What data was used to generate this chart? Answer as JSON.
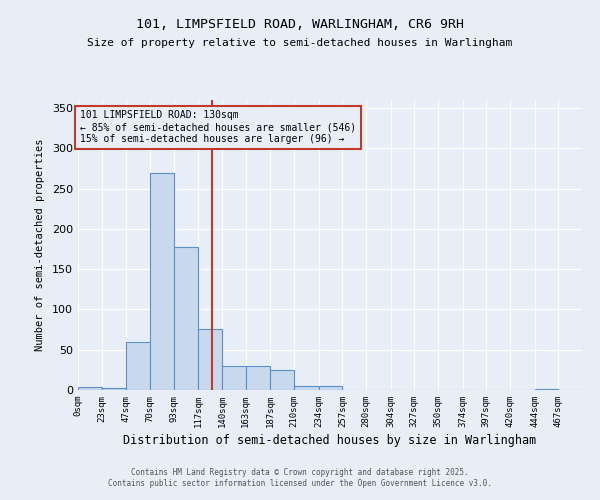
{
  "title1": "101, LIMPSFIELD ROAD, WARLINGHAM, CR6 9RH",
  "title2": "Size of property relative to semi-detached houses in Warlingham",
  "xlabel": "Distribution of semi-detached houses by size in Warlingham",
  "ylabel": "Number of semi-detached properties",
  "bin_labels": [
    "0sqm",
    "23sqm",
    "47sqm",
    "70sqm",
    "93sqm",
    "117sqm",
    "140sqm",
    "163sqm",
    "187sqm",
    "210sqm",
    "234sqm",
    "257sqm",
    "280sqm",
    "304sqm",
    "327sqm",
    "350sqm",
    "374sqm",
    "397sqm",
    "420sqm",
    "444sqm",
    "467sqm"
  ],
  "bin_edges": [
    0,
    23,
    47,
    70,
    93,
    117,
    140,
    163,
    187,
    210,
    234,
    257,
    280,
    304,
    327,
    350,
    374,
    397,
    420,
    444,
    467
  ],
  "bar_heights": [
    4,
    2,
    60,
    270,
    178,
    76,
    30,
    30,
    25,
    5,
    5,
    0,
    0,
    0,
    0,
    0,
    0,
    0,
    0,
    1,
    0
  ],
  "bar_color": "#c9d9ed",
  "bar_edge_color": "#5b8fc9",
  "property_size": 130,
  "vline_color": "#c0392b",
  "annotation_line1": "101 LIMPSFIELD ROAD: 130sqm",
  "annotation_line2": "← 85% of semi-detached houses are smaller (546)",
  "annotation_line3": "15% of semi-detached houses are larger (96) →",
  "annotation_box_color": "#c0392b",
  "ylim": [
    0,
    360
  ],
  "yticks": [
    0,
    50,
    100,
    150,
    200,
    250,
    300,
    350
  ],
  "footer1": "Contains HM Land Registry data © Crown copyright and database right 2025.",
  "footer2": "Contains public sector information licensed under the Open Government Licence v3.0.",
  "bg_color": "#e8eef7"
}
